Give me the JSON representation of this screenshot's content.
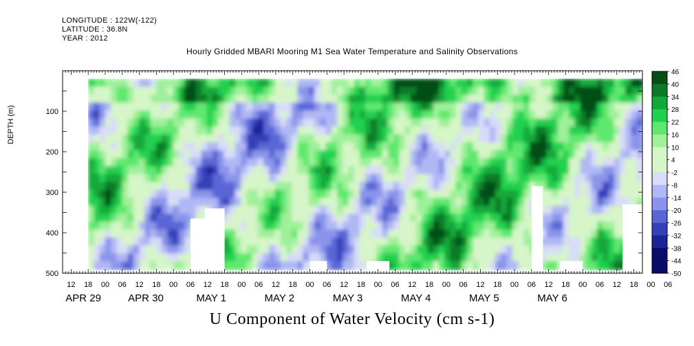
{
  "header": {
    "longitude": "LONGITUDE : 122W(-122)",
    "latitude": "LATITUDE : 36.8N",
    "year": "YEAR : 2012"
  },
  "colors": {
    "background": "#ffffff",
    "missing": "#ffffff",
    "positive_ramp": [
      "#d6f5c8",
      "#9ff09a",
      "#5ee870",
      "#22d050",
      "#12a83a",
      "#0b7a28",
      "#064d18"
    ],
    "negative_ramp": [
      "#d8dcf8",
      "#b0b8f4",
      "#8a94ea",
      "#5a66d6",
      "#3440b8",
      "#1c2496",
      "#0a0c6a"
    ]
  },
  "chart_data": {
    "type": "heatmap",
    "title": "Hourly Gridded MBARI Mooring M1 Sea Water Temperature and Salinity Observations",
    "xlabel": "U Component of Water Velocity (cm s-1)",
    "ylabel": "DEPTH (m)",
    "y_axis": {
      "range": [
        0,
        500
      ],
      "inverted": true,
      "ticks": [
        100,
        200,
        300,
        400,
        500
      ]
    },
    "x_axis": {
      "range_hours": [
        -15,
        189
      ],
      "data_range_hours": [
        -6,
        189
      ],
      "hour_ticks": [
        "12",
        "18",
        "00",
        "06",
        "12",
        "18",
        "00",
        "06",
        "12",
        "18",
        "00",
        "06",
        "12",
        "18",
        "00",
        "06",
        "12",
        "18",
        "00",
        "06",
        "12",
        "18",
        "00",
        "06",
        "12",
        "18",
        "00",
        "06",
        "12",
        "18",
        "00",
        "06",
        "12",
        "18",
        "00",
        "06"
      ],
      "day_labels": [
        "APR 29",
        "APR 30",
        "MAY 1",
        "MAY 2",
        "MAY 3",
        "MAY 4",
        "MAY 5",
        "MAY 6"
      ]
    },
    "colorbar": {
      "levels": [
        -50,
        -44,
        -38,
        -32,
        -26,
        -20,
        -14,
        -8,
        -2,
        4,
        10,
        16,
        22,
        28,
        34,
        40,
        46
      ]
    },
    "depth_range_m": [
      20,
      490
    ]
  }
}
